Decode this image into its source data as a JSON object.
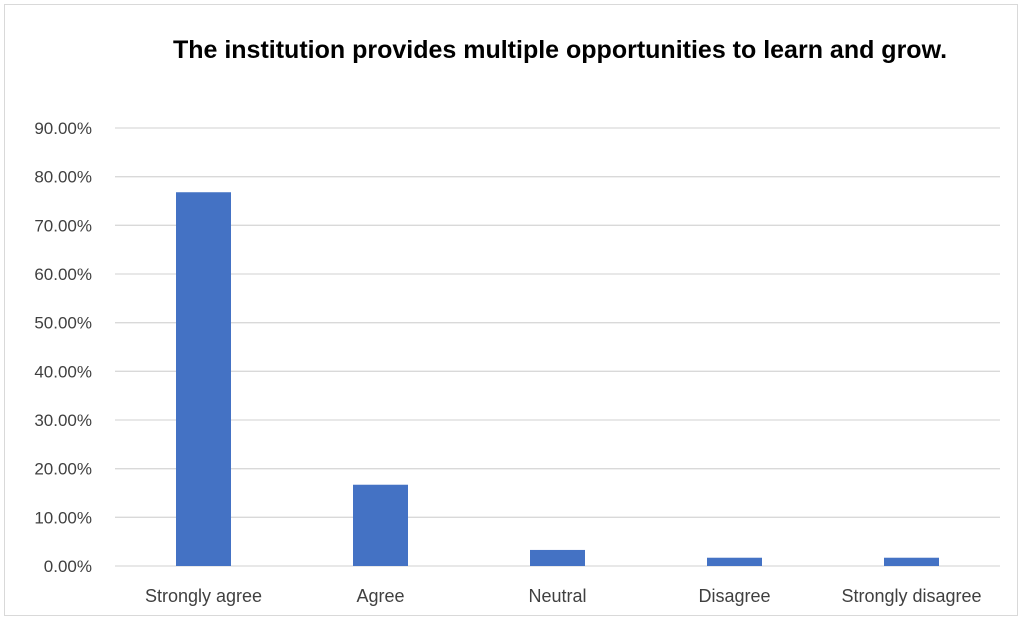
{
  "chart_data": {
    "type": "bar",
    "title": "The institution provides multiple opportunities to learn and grow.",
    "categories": [
      "Strongly agree",
      "Agree",
      "Neutral",
      "Disagree",
      "Strongly disagree"
    ],
    "values": [
      76.8,
      16.7,
      3.3,
      1.7,
      1.7
    ],
    "ylim": [
      0,
      90
    ],
    "ytick_step": 10,
    "ytick_labels": [
      "0.00%",
      "10.00%",
      "20.00%",
      "30.00%",
      "40.00%",
      "50.00%",
      "60.00%",
      "70.00%",
      "80.00%",
      "90.00%"
    ],
    "bar_color": "#4472c4",
    "grid_color": "#d9d9d9",
    "grid": true,
    "legend": "none"
  }
}
